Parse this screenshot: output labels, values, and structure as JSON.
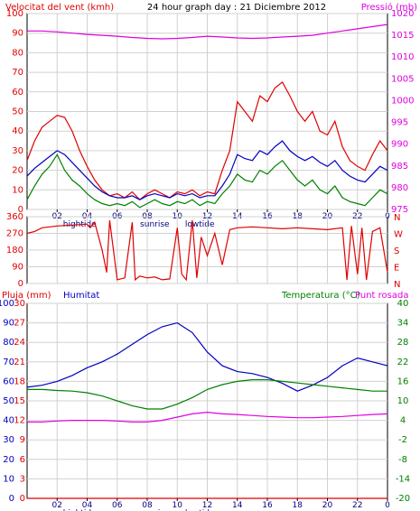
{
  "header": {
    "left_title": "Velocitat del vent (kmh)",
    "center_title": "24 hour graph day : 21 Diciembre 2012",
    "right_title": "Pressió (mb)"
  },
  "colors": {
    "red": "#e00000",
    "blue": "#0000c0",
    "green": "#008000",
    "magenta": "#e000e0",
    "pink": "#e0a0e0",
    "grid": "#d0d0d0",
    "panel_bg": "#ffffff",
    "frame": "#000000"
  },
  "x_axis": {
    "hours": [
      "02",
      "04",
      "06",
      "08",
      "10",
      "12",
      "14",
      "16",
      "18",
      "20",
      "22",
      "0"
    ],
    "markers": [
      {
        "label": "hightide",
        "at": 3.5
      },
      {
        "label": "sunrise",
        "at": 8.5
      },
      {
        "label": "lowtide",
        "at": 11.5
      }
    ]
  },
  "chart_data": [
    {
      "type": "line",
      "name": "wind-and-pressure",
      "x_unit": "hour",
      "xlim": [
        0,
        24
      ],
      "y_left": {
        "label": "Velocitat del vent (kmh)",
        "lim": [
          0,
          100
        ],
        "ticks": [
          0,
          10,
          20,
          30,
          40,
          50,
          60,
          70,
          80,
          90,
          100
        ]
      },
      "y_right": {
        "label": "Pressió (mb)",
        "lim": [
          975,
          1020
        ],
        "ticks": [
          975,
          980,
          985,
          990,
          995,
          1000,
          1005,
          1010,
          1015,
          1020
        ]
      },
      "series": [
        {
          "color": "red",
          "axis": "left",
          "x": [
            0,
            0.5,
            1,
            1.5,
            2,
            2.5,
            3,
            3.5,
            4,
            4.5,
            5,
            5.5,
            6,
            6.5,
            7,
            7.5,
            8,
            8.5,
            9,
            9.5,
            10,
            10.5,
            11,
            11.5,
            12,
            12.5,
            13,
            13.5,
            14,
            14.5,
            15,
            15.5,
            16,
            16.5,
            17,
            17.5,
            18,
            18.5,
            19,
            19.5,
            20,
            20.5,
            21,
            21.5,
            22,
            22.5,
            23,
            23.5,
            24
          ],
          "y": [
            25,
            35,
            42,
            45,
            48,
            47,
            40,
            30,
            22,
            15,
            10,
            7,
            8,
            6,
            9,
            5,
            8,
            10,
            8,
            6,
            9,
            8,
            10,
            7,
            9,
            8,
            20,
            30,
            55,
            50,
            45,
            58,
            55,
            62,
            65,
            58,
            50,
            45,
            50,
            40,
            38,
            45,
            32,
            25,
            22,
            20,
            28,
            35,
            30
          ]
        },
        {
          "color": "blue",
          "axis": "left",
          "x": [
            0,
            0.5,
            1,
            1.5,
            2,
            2.5,
            3,
            3.5,
            4,
            4.5,
            5,
            5.5,
            6,
            6.5,
            7,
            7.5,
            8,
            8.5,
            9,
            9.5,
            10,
            10.5,
            11,
            11.5,
            12,
            12.5,
            13,
            13.5,
            14,
            14.5,
            15,
            15.5,
            16,
            16.5,
            17,
            17.5,
            18,
            18.5,
            19,
            19.5,
            20,
            20.5,
            21,
            21.5,
            22,
            22.5,
            23,
            23.5,
            24
          ],
          "y": [
            17,
            21,
            24,
            27,
            30,
            28,
            24,
            20,
            16,
            12,
            9,
            7,
            6,
            6,
            7,
            5,
            7,
            8,
            7,
            6,
            8,
            7,
            8,
            6,
            7,
            7,
            12,
            18,
            28,
            26,
            25,
            30,
            28,
            32,
            35,
            30,
            27,
            25,
            27,
            24,
            22,
            25,
            20,
            17,
            15,
            14,
            18,
            22,
            20
          ]
        },
        {
          "color": "green",
          "axis": "left",
          "x": [
            0,
            0.5,
            1,
            1.5,
            2,
            2.5,
            3,
            3.5,
            4,
            4.5,
            5,
            5.5,
            6,
            6.5,
            7,
            7.5,
            8,
            8.5,
            9,
            9.5,
            10,
            10.5,
            11,
            11.5,
            12,
            12.5,
            13,
            13.5,
            14,
            14.5,
            15,
            15.5,
            16,
            16.5,
            17,
            17.5,
            18,
            18.5,
            19,
            19.5,
            20,
            20.5,
            21,
            21.5,
            22,
            22.5,
            23,
            23.5,
            24
          ],
          "y": [
            5,
            12,
            18,
            22,
            28,
            20,
            15,
            12,
            8,
            5,
            3,
            2,
            3,
            2,
            4,
            1,
            3,
            5,
            3,
            2,
            4,
            3,
            5,
            2,
            4,
            3,
            8,
            12,
            18,
            15,
            14,
            20,
            18,
            22,
            25,
            20,
            15,
            12,
            15,
            10,
            8,
            12,
            6,
            4,
            3,
            2,
            6,
            10,
            8
          ]
        },
        {
          "color": "magenta",
          "axis": "right",
          "x": [
            0,
            1,
            2,
            3,
            4,
            5,
            6,
            7,
            8,
            9,
            10,
            11,
            12,
            13,
            14,
            15,
            16,
            17,
            18,
            19,
            20,
            21,
            22,
            23,
            24
          ],
          "y": [
            1016,
            1016,
            1015.8,
            1015.5,
            1015.2,
            1015,
            1014.8,
            1014.5,
            1014.3,
            1014.2,
            1014.3,
            1014.5,
            1014.8,
            1014.6,
            1014.4,
            1014.3,
            1014.4,
            1014.6,
            1014.8,
            1015,
            1015.5,
            1016,
            1016.5,
            1017,
            1017.5
          ]
        }
      ]
    },
    {
      "type": "line",
      "name": "wind-direction",
      "x_unit": "hour",
      "xlim": [
        0,
        24
      ],
      "y_left": {
        "lim": [
          0,
          360
        ],
        "ticks": [
          0,
          90,
          180,
          270,
          360
        ]
      },
      "y_right_labels": [
        "N",
        "W",
        "S",
        "E",
        "N"
      ],
      "series": [
        {
          "color": "red",
          "x": [
            0,
            0.5,
            1,
            2,
            3,
            4,
            4.2,
            4.5,
            5,
            5.3,
            5.5,
            6,
            6.5,
            7,
            7.2,
            7.5,
            8,
            8.5,
            9,
            9.5,
            10,
            10.3,
            10.6,
            11,
            11.3,
            11.6,
            12,
            12.5,
            13,
            13.5,
            14,
            15,
            16,
            17,
            18,
            19,
            20,
            21,
            21.3,
            21.6,
            22,
            22.3,
            22.6,
            23,
            23.5,
            24
          ],
          "y": [
            270,
            280,
            300,
            310,
            315,
            320,
            300,
            330,
            180,
            60,
            340,
            20,
            30,
            330,
            20,
            40,
            30,
            35,
            20,
            25,
            300,
            50,
            20,
            340,
            30,
            250,
            150,
            270,
            100,
            290,
            300,
            305,
            300,
            295,
            300,
            295,
            290,
            300,
            20,
            310,
            50,
            300,
            20,
            280,
            300,
            60
          ]
        }
      ]
    },
    {
      "type": "line",
      "name": "rain-humidity-temperature",
      "x_unit": "hour",
      "xlim": [
        0,
        24
      ],
      "y_left_rain": {
        "label": "Pluja (mm)",
        "lim": [
          0,
          30
        ],
        "ticks": [
          0,
          3,
          6,
          9,
          12,
          15,
          18,
          21,
          24,
          27,
          30
        ]
      },
      "y_left_humidity": {
        "label": "Humitat",
        "lim": [
          0,
          100
        ],
        "ticks": [
          0,
          10,
          20,
          30,
          40,
          50,
          60,
          70,
          80,
          90,
          100
        ]
      },
      "y_right": {
        "label": "Temperatura (°C)",
        "lim": [
          -20,
          40
        ],
        "ticks": [
          -20,
          -14,
          -8,
          -2,
          4,
          10,
          16,
          22,
          28,
          34,
          40
        ]
      },
      "second_right_label": "Punt rosada",
      "series": [
        {
          "color": "blue",
          "axis": "humidity",
          "x": [
            0,
            1,
            2,
            3,
            4,
            5,
            6,
            7,
            8,
            9,
            10,
            11,
            12,
            13,
            14,
            15,
            16,
            17,
            18,
            19,
            20,
            21,
            22,
            23,
            24
          ],
          "y": [
            57,
            58,
            60,
            63,
            67,
            70,
            74,
            79,
            84,
            88,
            90,
            85,
            75,
            68,
            65,
            64,
            62,
            59,
            55,
            58,
            62,
            68,
            72,
            70,
            68
          ]
        },
        {
          "color": "green",
          "axis": "right",
          "x": [
            0,
            1,
            2,
            3,
            4,
            5,
            6,
            7,
            8,
            9,
            10,
            11,
            12,
            13,
            14,
            15,
            16,
            17,
            18,
            19,
            20,
            21,
            22,
            23,
            24
          ],
          "y": [
            13.5,
            13.5,
            13.2,
            13,
            12.5,
            11.5,
            10,
            8.5,
            7.5,
            7.5,
            9,
            11,
            13.5,
            15,
            16,
            16.5,
            16.5,
            16,
            15.5,
            15,
            14.5,
            14,
            13.5,
            13,
            13
          ]
        },
        {
          "color": "magenta",
          "axis": "right",
          "x": [
            0,
            1,
            2,
            3,
            4,
            5,
            6,
            7,
            8,
            9,
            10,
            11,
            12,
            13,
            14,
            15,
            16,
            17,
            18,
            19,
            20,
            21,
            22,
            23,
            24
          ],
          "y": [
            3.5,
            3.5,
            3.8,
            4,
            4,
            4,
            3.8,
            3.5,
            3.5,
            4,
            5,
            6,
            6.5,
            6,
            5.8,
            5.5,
            5.2,
            5,
            4.8,
            4.8,
            5,
            5.2,
            5.5,
            5.8,
            6
          ]
        },
        {
          "color": "red",
          "axis": "rain",
          "x": [
            0,
            24
          ],
          "y": [
            0,
            0
          ]
        }
      ]
    }
  ]
}
